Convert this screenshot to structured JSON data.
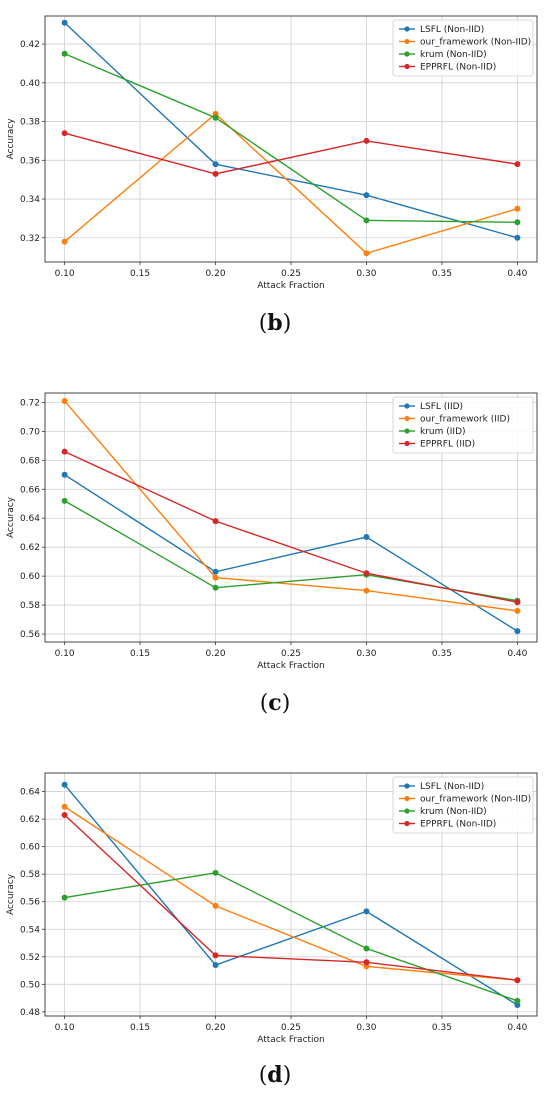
{
  "colors": {
    "blue": "#1f77b4",
    "orange": "#ff7f0e",
    "green": "#2ca02c",
    "red": "#d62728"
  },
  "chart_data": [
    {
      "type": "line",
      "panel": "b",
      "x": [
        0.1,
        0.2,
        0.3,
        0.4
      ],
      "x_ticks": [
        "0.10",
        "0.15",
        "0.20",
        "0.25",
        "0.30",
        "0.35",
        "0.40"
      ],
      "y_ticks": [
        "0.32",
        "0.34",
        "0.36",
        "0.38",
        "0.40",
        "0.42"
      ],
      "xlabel": "Attack Fraction",
      "ylabel": "Accuracy",
      "xlim": [
        0.087,
        0.413
      ],
      "ylim": [
        0.3075,
        0.4345
      ],
      "grid": true,
      "legend": "top-right",
      "series": [
        {
          "name": "LSFL (Non-IID)",
          "color": "#1f77b4",
          "values": [
            0.431,
            0.358,
            0.342,
            0.32
          ]
        },
        {
          "name": "our_framework (Non-IID)",
          "color": "#ff7f0e",
          "values": [
            0.318,
            0.384,
            0.312,
            0.335
          ]
        },
        {
          "name": "krum (Non-IID)",
          "color": "#2ca02c",
          "values": [
            0.415,
            0.382,
            0.329,
            0.328
          ]
        },
        {
          "name": "EPPRFL (Non-IID)",
          "color": "#d62728",
          "values": [
            0.374,
            0.353,
            0.37,
            0.358
          ]
        }
      ],
      "caption": {
        "open": "(",
        "letter": "b",
        "close": ")"
      }
    },
    {
      "type": "line",
      "panel": "c",
      "x": [
        0.1,
        0.2,
        0.3,
        0.4
      ],
      "x_ticks": [
        "0.10",
        "0.15",
        "0.20",
        "0.25",
        "0.30",
        "0.35",
        "0.40"
      ],
      "y_ticks": [
        "0.56",
        "0.58",
        "0.60",
        "0.62",
        "0.64",
        "0.66",
        "0.68",
        "0.70",
        "0.72"
      ],
      "xlabel": "Attack Fraction",
      "ylabel": "Accuracy",
      "xlim": [
        0.087,
        0.413
      ],
      "ylim": [
        0.5545,
        0.7265
      ],
      "grid": true,
      "legend": "top-right",
      "series": [
        {
          "name": "LSFL (IID)",
          "color": "#1f77b4",
          "values": [
            0.67,
            0.603,
            0.627,
            0.562
          ]
        },
        {
          "name": "our_framework (IID)",
          "color": "#ff7f0e",
          "values": [
            0.721,
            0.599,
            0.59,
            0.576
          ]
        },
        {
          "name": "krum (IID)",
          "color": "#2ca02c",
          "values": [
            0.652,
            0.592,
            0.601,
            0.583
          ]
        },
        {
          "name": "EPPRFL (IID)",
          "color": "#d62728",
          "values": [
            0.686,
            0.638,
            0.602,
            0.582
          ]
        }
      ],
      "caption": {
        "open": "(",
        "letter": "c",
        "close": ")"
      }
    },
    {
      "type": "line",
      "panel": "d",
      "x": [
        0.1,
        0.2,
        0.3,
        0.4
      ],
      "x_ticks": [
        "0.10",
        "0.15",
        "0.20",
        "0.25",
        "0.30",
        "0.35",
        "0.40"
      ],
      "y_ticks": [
        "0.48",
        "0.50",
        "0.52",
        "0.54",
        "0.56",
        "0.58",
        "0.60",
        "0.62",
        "0.64"
      ],
      "xlabel": "Attack Fraction",
      "ylabel": "Accuracy",
      "xlim": [
        0.087,
        0.413
      ],
      "ylim": [
        0.477,
        0.6535
      ],
      "grid": true,
      "legend": "top-right",
      "series": [
        {
          "name": "LSFL (Non-IID)",
          "color": "#1f77b4",
          "values": [
            0.645,
            0.514,
            0.553,
            0.485
          ]
        },
        {
          "name": "our_framework (Non-IID)",
          "color": "#ff7f0e",
          "values": [
            0.629,
            0.557,
            0.513,
            0.503
          ]
        },
        {
          "name": "krum (Non-IID)",
          "color": "#2ca02c",
          "values": [
            0.563,
            0.581,
            0.526,
            0.488
          ]
        },
        {
          "name": "EPPRFL (Non-IID)",
          "color": "#d62728",
          "values": [
            0.623,
            0.521,
            0.516,
            0.503
          ]
        }
      ],
      "caption": {
        "open": "(",
        "letter": "d",
        "close": ")"
      }
    }
  ]
}
